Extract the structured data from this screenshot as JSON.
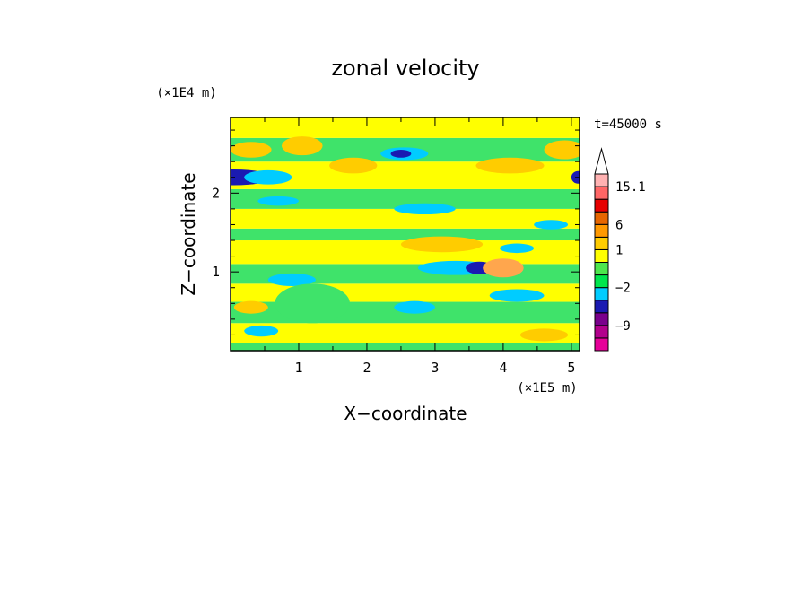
{
  "chart_data": {
    "type": "heatmap",
    "title": "zonal velocity",
    "xlabel": "X−coordinate",
    "ylabel": "Z−coordinate",
    "x_unit": "(×1E5 m)",
    "y_unit": "(×1E4 m)",
    "time_label": "t=45000 s",
    "xlim": [
      0,
      5.12
    ],
    "ylim": [
      0,
      2.96
    ],
    "x_ticks": [
      {
        "value": 1,
        "label": "1"
      },
      {
        "value": 2,
        "label": "2"
      },
      {
        "value": 3,
        "label": "3"
      },
      {
        "value": 4,
        "label": "4"
      },
      {
        "value": 5,
        "label": "5"
      }
    ],
    "y_ticks": [
      {
        "value": 1,
        "label": "1"
      },
      {
        "value": 2,
        "label": "2"
      }
    ],
    "colorbar": {
      "levels": [
        -15,
        -12,
        -9,
        -6,
        -3,
        -2,
        -1,
        0,
        1,
        3,
        6,
        9,
        12,
        15.1
      ],
      "colors": [
        "#e60099",
        "#b2008c",
        "#7a008c",
        "#1a1ab2",
        "#00ccff",
        "#00e64d",
        "#4de64d",
        "#ffff00",
        "#ffcc00",
        "#ff9900",
        "#e66600",
        "#e60000",
        "#ff6666",
        "#ffb2b2"
      ],
      "top_arrow_color": "#ffffff",
      "tick_labels": [
        {
          "value": 15.1,
          "label": "15.1"
        },
        {
          "value": 6,
          "label": "6"
        },
        {
          "value": 1,
          "label": "1"
        },
        {
          "value": -2,
          "label": "−2"
        },
        {
          "value": -9,
          "label": "−9"
        }
      ]
    },
    "bands": [
      {
        "z": [
          0.0,
          0.1
        ],
        "value": -1,
        "color": "#3fe36a"
      },
      {
        "z": [
          0.1,
          0.35
        ],
        "value": 0.5,
        "color": "#ffff00"
      },
      {
        "z": [
          0.35,
          0.62
        ],
        "value": -1,
        "color": "#3fe36a"
      },
      {
        "z": [
          0.62,
          0.85
        ],
        "value": 0.5,
        "color": "#ffff00"
      },
      {
        "z": [
          0.85,
          1.1
        ],
        "value": -1,
        "color": "#3fe36a"
      },
      {
        "z": [
          1.1,
          1.4
        ],
        "value": 0.5,
        "color": "#ffff00"
      },
      {
        "z": [
          1.4,
          1.55
        ],
        "value": -1,
        "color": "#3fe36a"
      },
      {
        "z": [
          1.55,
          1.8
        ],
        "value": 0.5,
        "color": "#ffff00"
      },
      {
        "z": [
          1.8,
          2.05
        ],
        "value": -1,
        "color": "#3fe36a"
      },
      {
        "z": [
          2.05,
          2.4
        ],
        "value": 0.5,
        "color": "#ffff00"
      },
      {
        "z": [
          2.4,
          2.7
        ],
        "value": -1,
        "color": "#3fe36a"
      },
      {
        "z": [
          2.7,
          2.96
        ],
        "value": 0.5,
        "color": "#ffff00"
      }
    ],
    "patches": [
      {
        "x": 0.05,
        "z": 2.2,
        "rx": 0.55,
        "rz": 0.1,
        "value": -6,
        "color": "#1a1ab2"
      },
      {
        "x": 0.55,
        "z": 2.2,
        "rx": 0.35,
        "rz": 0.09,
        "value": -3,
        "color": "#00ccff"
      },
      {
        "x": 5.1,
        "z": 2.2,
        "rx": 0.1,
        "rz": 0.08,
        "value": -6,
        "color": "#1a1ab2"
      },
      {
        "x": 2.55,
        "z": 2.5,
        "rx": 0.35,
        "rz": 0.08,
        "value": -3,
        "color": "#00ccff"
      },
      {
        "x": 2.5,
        "z": 2.5,
        "rx": 0.15,
        "rz": 0.05,
        "value": -6,
        "color": "#1a1ab2"
      },
      {
        "x": 3.3,
        "z": 1.05,
        "rx": 0.55,
        "rz": 0.09,
        "value": -3,
        "color": "#00ccff"
      },
      {
        "x": 3.65,
        "z": 1.05,
        "rx": 0.2,
        "rz": 0.08,
        "value": -6,
        "color": "#1a1ab2"
      },
      {
        "x": 2.85,
        "z": 1.8,
        "rx": 0.45,
        "rz": 0.07,
        "value": -3,
        "color": "#00ccff"
      },
      {
        "x": 0.7,
        "z": 1.9,
        "rx": 0.3,
        "rz": 0.06,
        "value": -3,
        "color": "#00ccff"
      },
      {
        "x": 4.2,
        "z": 1.3,
        "rx": 0.25,
        "rz": 0.06,
        "value": -3,
        "color": "#00ccff"
      },
      {
        "x": 4.7,
        "z": 1.6,
        "rx": 0.25,
        "rz": 0.06,
        "value": -3,
        "color": "#00ccff"
      },
      {
        "x": 4.2,
        "z": 0.7,
        "rx": 0.4,
        "rz": 0.08,
        "value": -3,
        "color": "#00ccff"
      },
      {
        "x": 2.7,
        "z": 0.55,
        "rx": 0.3,
        "rz": 0.08,
        "value": -3,
        "color": "#00ccff"
      },
      {
        "x": 0.45,
        "z": 0.25,
        "rx": 0.25,
        "rz": 0.07,
        "value": -3,
        "color": "#00ccff"
      },
      {
        "x": 0.9,
        "z": 0.9,
        "rx": 0.35,
        "rz": 0.08,
        "value": -3,
        "color": "#00ccff"
      },
      {
        "x": 1.2,
        "z": 0.6,
        "rx": 0.55,
        "rz": 0.25,
        "value": -1,
        "color": "#3fe36a"
      },
      {
        "x": 1.05,
        "z": 2.6,
        "rx": 0.3,
        "rz": 0.12,
        "value": 3,
        "color": "#ffcc00"
      },
      {
        "x": 0.3,
        "z": 2.55,
        "rx": 0.3,
        "rz": 0.1,
        "value": 3,
        "color": "#ffcc00"
      },
      {
        "x": 1.8,
        "z": 2.35,
        "rx": 0.35,
        "rz": 0.1,
        "value": 3,
        "color": "#ffcc00"
      },
      {
        "x": 4.1,
        "z": 2.35,
        "rx": 0.5,
        "rz": 0.1,
        "value": 3,
        "color": "#ffcc00"
      },
      {
        "x": 4.9,
        "z": 2.55,
        "rx": 0.3,
        "rz": 0.12,
        "value": 3,
        "color": "#ffcc00"
      },
      {
        "x": 3.1,
        "z": 1.35,
        "rx": 0.6,
        "rz": 0.1,
        "value": 3,
        "color": "#ffcc00"
      },
      {
        "x": 4.0,
        "z": 1.05,
        "rx": 0.3,
        "rz": 0.12,
        "value": 6,
        "color": "#ffa64d"
      },
      {
        "x": 4.6,
        "z": 0.2,
        "rx": 0.35,
        "rz": 0.08,
        "value": 3,
        "color": "#ffcc00"
      },
      {
        "x": 0.3,
        "z": 0.55,
        "rx": 0.25,
        "rz": 0.08,
        "value": 3,
        "color": "#ffcc00"
      }
    ]
  }
}
